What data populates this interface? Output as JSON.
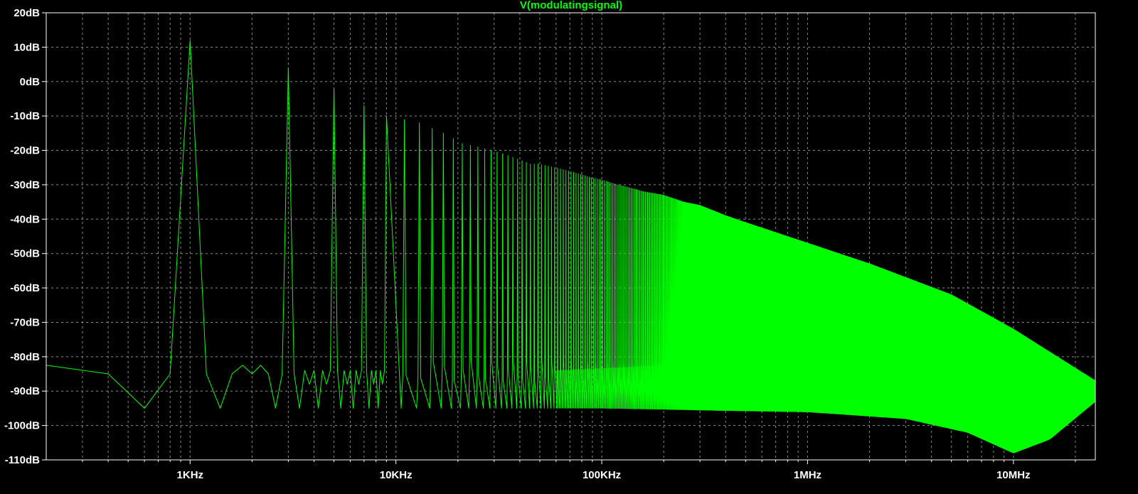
{
  "chart_data": {
    "type": "line",
    "title": "V(modulatingsignal)",
    "xlabel": "",
    "ylabel": "",
    "x_scale": "log",
    "x_unit": "Hz",
    "xlim": [
      200,
      25000000
    ],
    "ylim": [
      -110,
      20
    ],
    "grid": true,
    "legend": "none",
    "colors": {
      "background": "#000000",
      "trace": "#00ff00",
      "grid": "#8a8a8a",
      "axis": "#ffffff",
      "tick_text": "#ffffff"
    },
    "x_ticks": [
      {
        "value": 1000,
        "label": "1KHz"
      },
      {
        "value": 10000,
        "label": "10KHz"
      },
      {
        "value": 100000,
        "label": "100KHz"
      },
      {
        "value": 1000000,
        "label": "1MHz"
      },
      {
        "value": 10000000,
        "label": "10MHz"
      }
    ],
    "y_ticks": [
      {
        "value": 20,
        "label": "20dB"
      },
      {
        "value": 10,
        "label": "10dB"
      },
      {
        "value": 0,
        "label": "0dB"
      },
      {
        "value": -10,
        "label": "-10dB"
      },
      {
        "value": -20,
        "label": "-20dB"
      },
      {
        "value": -30,
        "label": "-30dB"
      },
      {
        "value": -40,
        "label": "-40dB"
      },
      {
        "value": -50,
        "label": "-50dB"
      },
      {
        "value": -60,
        "label": "-60dB"
      },
      {
        "value": -70,
        "label": "-70dB"
      },
      {
        "value": -80,
        "label": "-80dB"
      },
      {
        "value": -90,
        "label": "-90dB"
      },
      {
        "value": -100,
        "label": "-100dB"
      },
      {
        "value": -110,
        "label": "-110dB"
      }
    ],
    "series": [
      {
        "name": "V(modulatingsignal)",
        "color": "#00ff00",
        "fundamental_hz": 1000,
        "x": [
          200,
          400,
          600,
          800,
          1000,
          1200,
          1400,
          1600,
          1800,
          2000,
          2200,
          2400,
          2600,
          2800,
          3000,
          3200,
          3400,
          3600,
          3800,
          4000,
          4200,
          4400,
          4600,
          4800,
          5000,
          5200,
          5400,
          5600,
          5800,
          6000,
          6200,
          6400,
          6600,
          6800,
          7000,
          7200,
          7400,
          7600,
          7800,
          8000,
          8200,
          8400,
          8600,
          8800,
          9000
        ],
        "y": [
          -82.5,
          -85,
          -95,
          -85,
          12,
          -85,
          -95,
          -85,
          -82.5,
          -85,
          -82.5,
          -85,
          -95,
          -85,
          4,
          -85,
          -95,
          -84,
          -88,
          -84,
          -95,
          -84,
          -88,
          -84,
          -2,
          -84,
          -95,
          -84,
          -88,
          -84,
          -95,
          -84,
          -88,
          -84,
          -7,
          -84,
          -95,
          -84,
          -88,
          -84,
          -95,
          -84,
          -88,
          -84,
          -10
        ],
        "harmonic_peaks": {
          "x": [
            1000,
            3000,
            5000,
            7000,
            9000,
            13000,
            17000,
            21000,
            25000,
            29000,
            33000,
            37000,
            41000,
            45000,
            49000,
            59000,
            69000,
            79000,
            89000,
            99000,
            119000,
            139000,
            159000,
            199000,
            249000,
            299000,
            399000,
            499000,
            999000,
            2001000,
            5001000,
            10001000,
            25000000
          ],
          "y": [
            12,
            4,
            -2,
            -7,
            -10,
            -12,
            -15,
            -18,
            -19,
            -20,
            -21,
            -22,
            -23,
            -24,
            -24,
            -25,
            -26,
            -27,
            -28,
            -28.5,
            -30,
            -31,
            -32,
            -33,
            -35,
            -36,
            -39,
            -41,
            -47,
            -53,
            -62,
            -72,
            -87
          ]
        },
        "noise_floor": {
          "x": [
            10000,
            100000,
            1000000,
            3000000,
            6000000,
            10000000,
            15000000,
            25000000
          ],
          "y": [
            -95,
            -95,
            -96,
            -98,
            -102,
            -108,
            -104,
            -93
          ]
        }
      }
    ]
  }
}
